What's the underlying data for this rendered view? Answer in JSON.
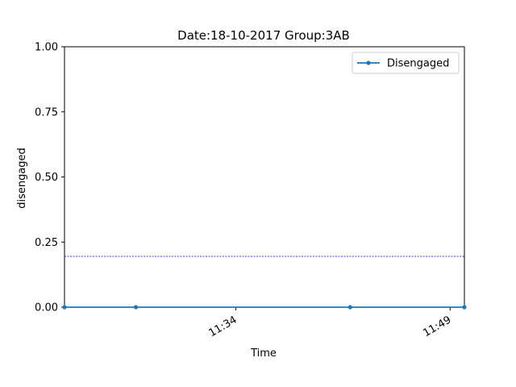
{
  "chart_data": {
    "type": "line",
    "title": "Date:18-10-2017  Group:3AB",
    "xlabel": "Time",
    "ylabel": "disengaged",
    "xlim": [
      "11:22",
      "11:50"
    ],
    "ylim": [
      0.0,
      1.0
    ],
    "x_ticks": [
      {
        "time": "11:34",
        "label": "11:34"
      },
      {
        "time": "11:49",
        "label": "11:49"
      }
    ],
    "y_ticks": [
      {
        "value": 0.0,
        "label": "0.00"
      },
      {
        "value": 0.25,
        "label": "0.25"
      },
      {
        "value": 0.5,
        "label": "0.50"
      },
      {
        "value": 0.75,
        "label": "0.75"
      },
      {
        "value": 1.0,
        "label": "1.00"
      }
    ],
    "series": [
      {
        "name": "Disengaged",
        "color": "#1f77b4",
        "x": [
          "11:22",
          "11:27",
          "11:42",
          "11:50"
        ],
        "y": [
          0,
          0,
          0,
          0
        ]
      }
    ],
    "reference_line": {
      "value": 0.195,
      "color": "#0000cc",
      "style": "dotted"
    },
    "legend": {
      "position": "top-right",
      "show": true
    },
    "grid": false
  }
}
